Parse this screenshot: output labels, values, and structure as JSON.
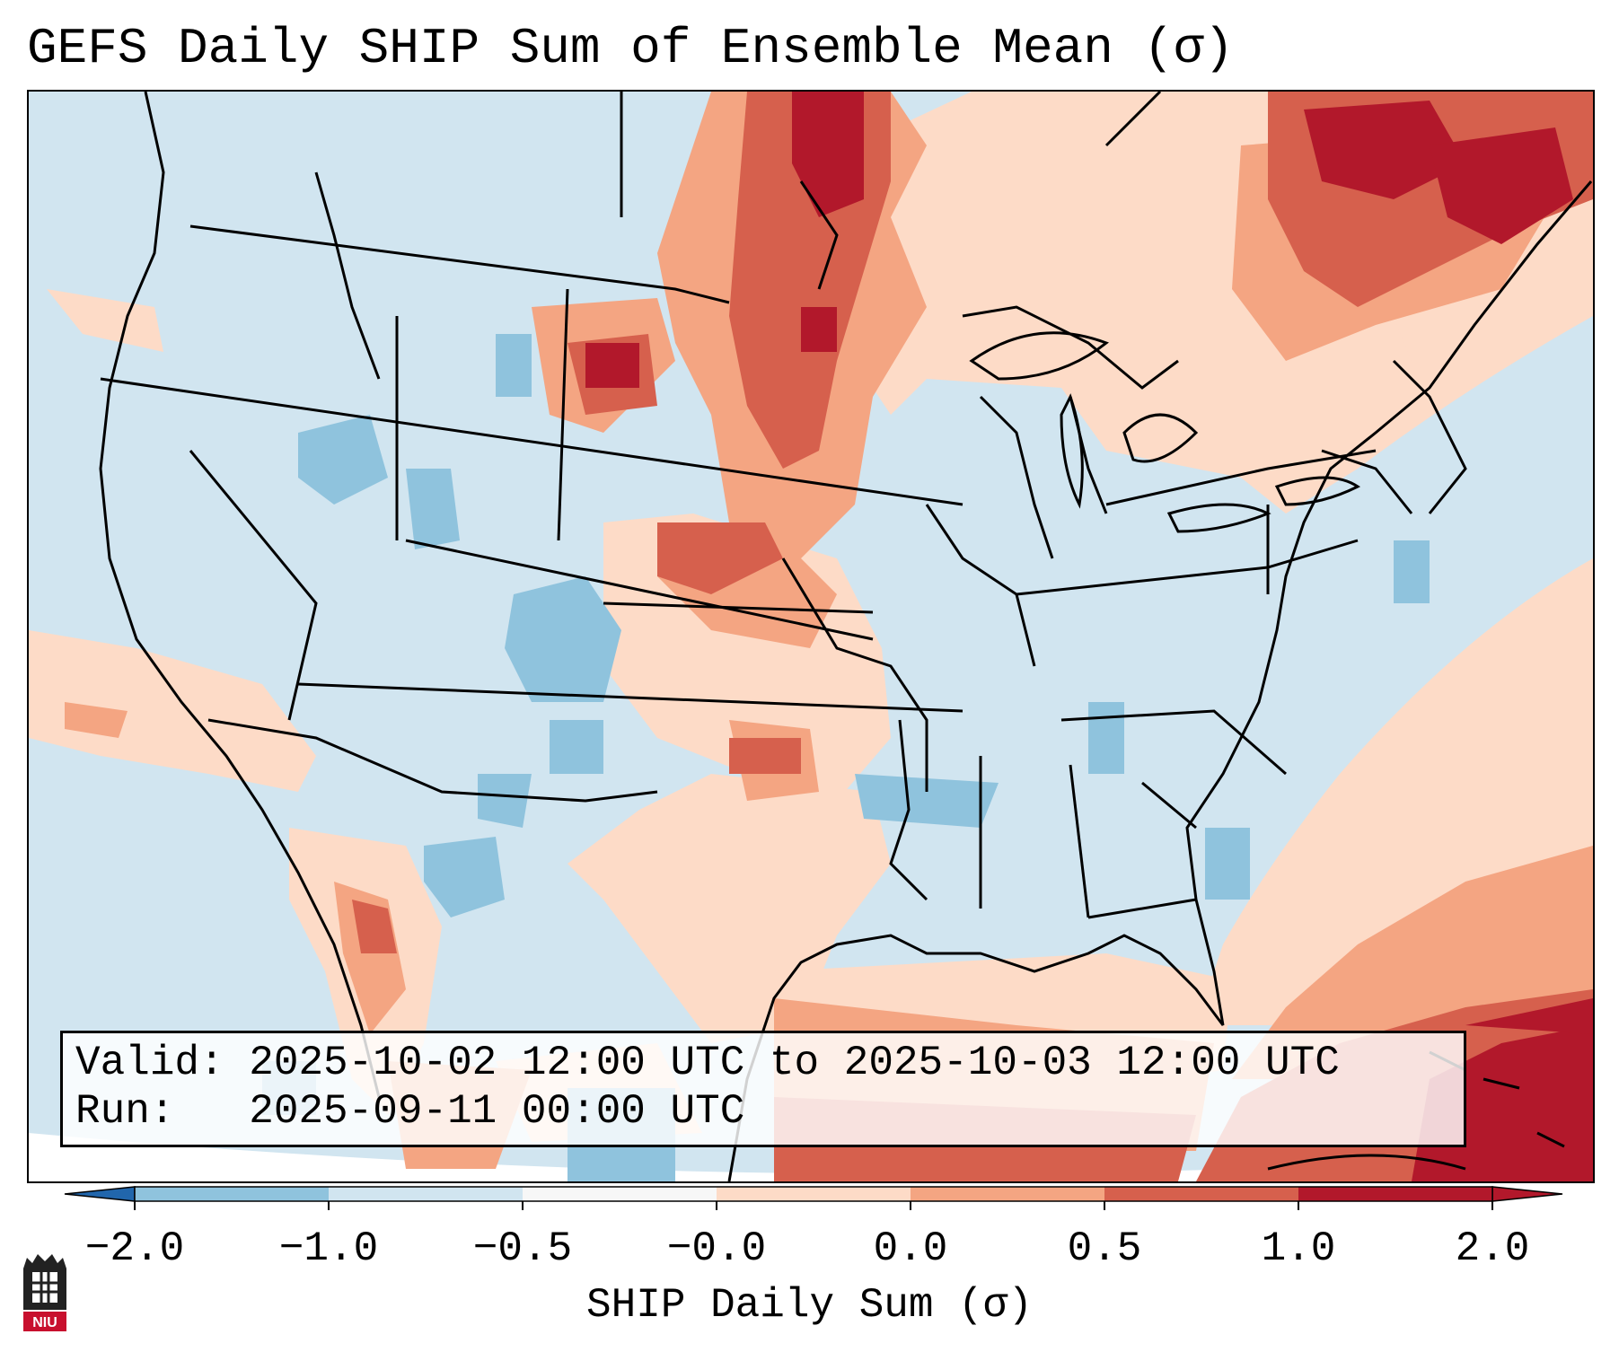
{
  "title": "GEFS Daily SHIP Sum of Ensemble Mean (σ)",
  "info": {
    "valid_line": "Valid: 2025-10-02 12:00 UTC to 2025-10-03 12:00 UTC",
    "run_line": "Run:   2025-09-11 00:00 UTC"
  },
  "colorbar": {
    "label": "SHIP Daily Sum (σ)",
    "ticks": [
      "−2.0",
      "−1.0",
      "−0.5",
      "−0.0",
      "0.0",
      "0.5",
      "1.0",
      "2.0"
    ],
    "colors": [
      "#3a7fbf",
      "#8fc3dd",
      "#d1e5f0",
      "#f7f7f7",
      "#fddbc7",
      "#f4a582",
      "#d6604d",
      "#b2182b"
    ],
    "extend_low_color": "#2166ac",
    "extend_high_color": "#b2182b"
  },
  "logo": {
    "text": "NIU",
    "color": "#c8102e"
  }
}
